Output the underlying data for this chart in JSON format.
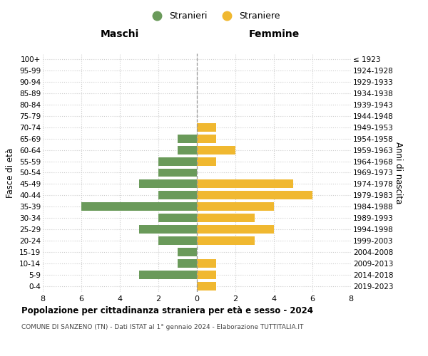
{
  "age_groups": [
    "0-4",
    "5-9",
    "10-14",
    "15-19",
    "20-24",
    "25-29",
    "30-34",
    "35-39",
    "40-44",
    "45-49",
    "50-54",
    "55-59",
    "60-64",
    "65-69",
    "70-74",
    "75-79",
    "80-84",
    "85-89",
    "90-94",
    "95-99",
    "100+"
  ],
  "birth_years": [
    "2019-2023",
    "2014-2018",
    "2009-2013",
    "2004-2008",
    "1999-2003",
    "1994-1998",
    "1989-1993",
    "1984-1988",
    "1979-1983",
    "1974-1978",
    "1969-1973",
    "1964-1968",
    "1959-1963",
    "1954-1958",
    "1949-1953",
    "1944-1948",
    "1939-1943",
    "1934-1938",
    "1929-1933",
    "1924-1928",
    "≤ 1923"
  ],
  "maschi": [
    0,
    3,
    1,
    1,
    2,
    3,
    2,
    6,
    2,
    3,
    2,
    2,
    1,
    1,
    0,
    0,
    0,
    0,
    0,
    0,
    0
  ],
  "femmine": [
    1,
    1,
    1,
    0,
    3,
    4,
    3,
    4,
    6,
    5,
    0,
    1,
    2,
    1,
    1,
    0,
    0,
    0,
    0,
    0,
    0
  ],
  "color_maschi": "#6a9a5a",
  "color_femmine": "#f0b830",
  "title": "Popolazione per cittadinanza straniera per età e sesso - 2024",
  "subtitle": "COMUNE DI SANZENO (TN) - Dati ISTAT al 1° gennaio 2024 - Elaborazione TUTTITALIA.IT",
  "xlabel_left": "Maschi",
  "xlabel_right": "Femmine",
  "ylabel_left": "Fasce di età",
  "ylabel_right": "Anni di nascita",
  "legend_maschi": "Stranieri",
  "legend_femmine": "Straniere",
  "xlim": 8,
  "background_color": "#ffffff",
  "grid_color": "#cccccc"
}
